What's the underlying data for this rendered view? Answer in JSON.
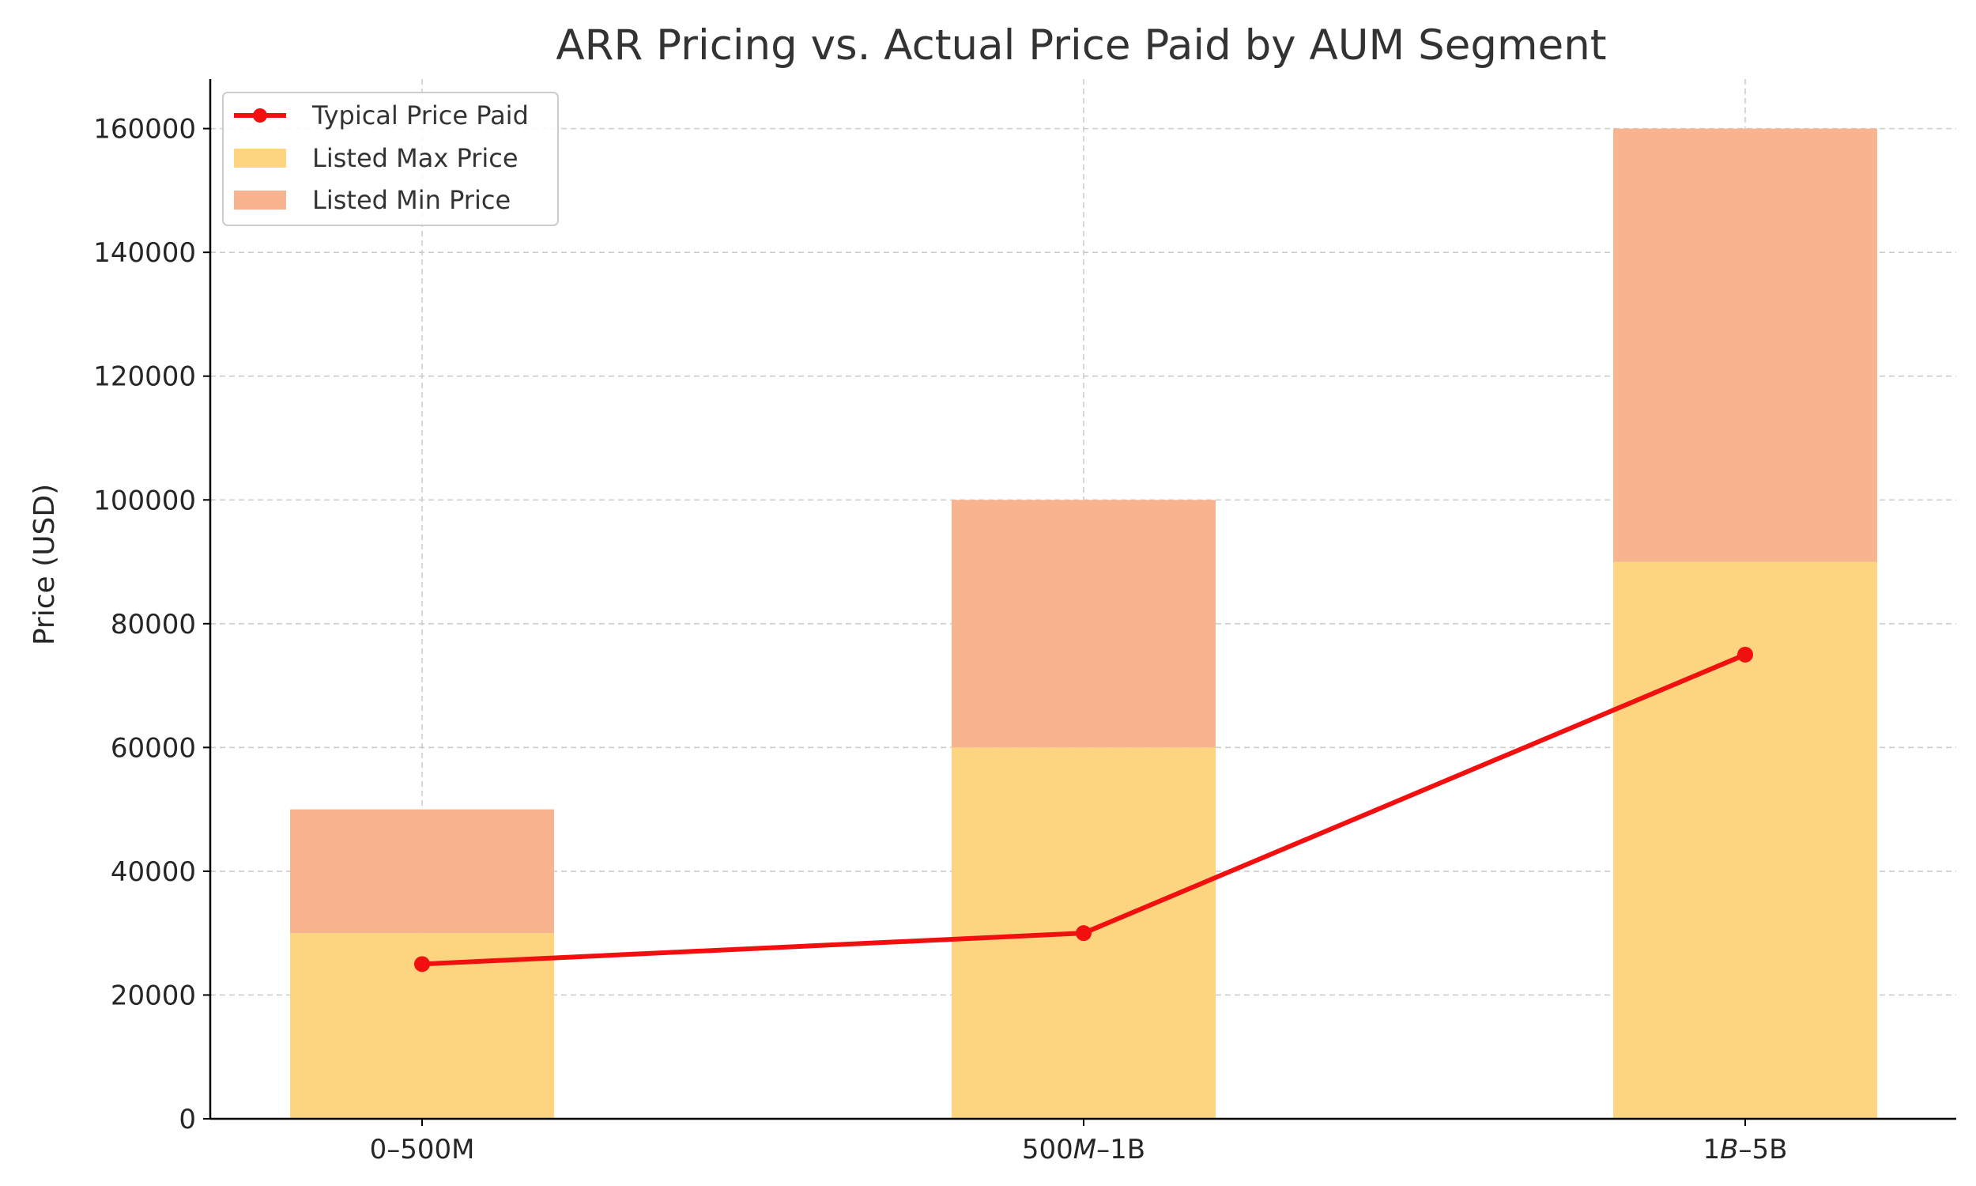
{
  "chart_data": {
    "type": "bar",
    "title": "ARR Pricing vs. Actual Price Paid by AUM Segment",
    "xlabel": "",
    "ylabel": "Price (USD)",
    "categories": [
      "0–500M",
      "500$M–1B",
      "1$B–5B"
    ],
    "category_labels": [
      [
        {
          "t": "0–500M",
          "it": false
        }
      ],
      [
        {
          "t": "500",
          "it": false
        },
        {
          "t": "M",
          "it": true
        },
        {
          "t": "–1B",
          "it": false
        }
      ],
      [
        {
          "t": "1",
          "it": false
        },
        {
          "t": "B",
          "it": true
        },
        {
          "t": "–5B",
          "it": false
        }
      ]
    ],
    "ylim": [
      0,
      168000
    ],
    "yticks": [
      0,
      20000,
      40000,
      60000,
      80000,
      100000,
      120000,
      140000,
      160000
    ],
    "grid": true,
    "legend_position": "top-left",
    "series": [
      {
        "name": "Listed Max Price",
        "kind": "bar",
        "stack_base": 0,
        "values": [
          30000,
          60000,
          90000
        ],
        "color": "#FDD581"
      },
      {
        "name": "Listed Min Price",
        "kind": "bar",
        "stack_on": "Listed Max Price",
        "values": [
          20000,
          40000,
          70000
        ],
        "color": "#F8B48E"
      },
      {
        "name": "Typical Price Paid",
        "kind": "line",
        "values": [
          25000,
          30000,
          75000
        ],
        "color": "#F20F0F",
        "marker": "circle"
      }
    ],
    "legend": [
      "Typical Price Paid",
      "Listed Max Price",
      "Listed Min Price"
    ]
  }
}
